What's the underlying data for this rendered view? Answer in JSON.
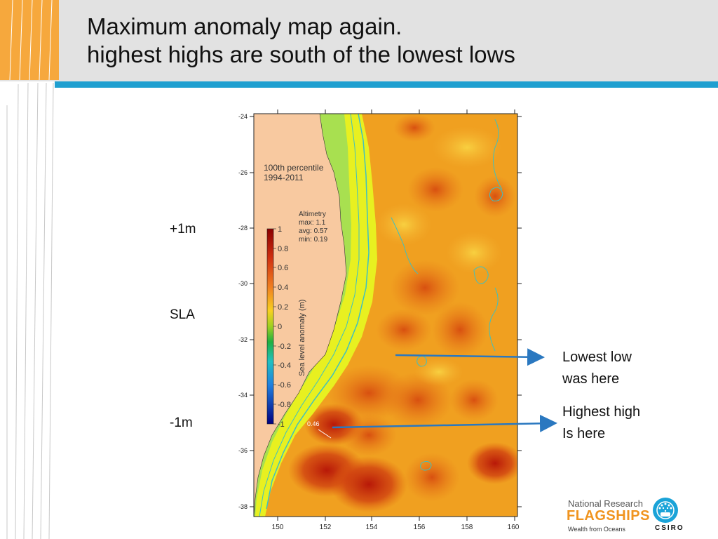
{
  "slide": {
    "title_line1": "Maximum anomaly map again.",
    "title_line2": "highest highs are south of the lowest lows"
  },
  "side_labels": {
    "top": "+1m",
    "middle": "SLA",
    "bottom": "-1m"
  },
  "annotations": {
    "lowest_line1": "Lowest low",
    "lowest_line2": "was here",
    "highest_line1": "Highest high",
    "highest_line2": "Is here"
  },
  "map": {
    "y_ticks": [
      "-24",
      "-26",
      "-28",
      "-30",
      "-32",
      "-34",
      "-36",
      "-38"
    ],
    "x_ticks": [
      "150",
      "152",
      "154",
      "156",
      "158",
      "160"
    ],
    "legend_title_line1": "100th percentile",
    "legend_title_line2": "1994-2011",
    "stats_line1": "Altimetry",
    "stats_line2": "max: 1.1",
    "stats_line3": "avg: 0.57",
    "stats_line4": "min: 0.19",
    "colorbar_ticks": [
      "1",
      "0.8",
      "0.6",
      "0.4",
      "0.2",
      "0",
      "-0.2",
      "-0.4",
      "-0.6",
      "-0.8",
      "-1"
    ],
    "colorbar_label": "Sea level anomaly (m)",
    "point_label": "0.46",
    "colors": {
      "land": "#f8c9a0",
      "ocean_base": "#f0a020",
      "shelf": "#e8f020",
      "coast_band": "#a8e050",
      "contour": "#3fc0c0"
    }
  },
  "logo": {
    "line1": "National Research",
    "line2": "FLAGSHIPS",
    "tagline": "Wealth from Oceans",
    "org": "CSIRO"
  },
  "colors": {
    "header_band": "#e2e2e2",
    "accent_orange": "#f6a83d",
    "accent_blue": "#1f9fd0",
    "arrow": "#2a78c0"
  }
}
